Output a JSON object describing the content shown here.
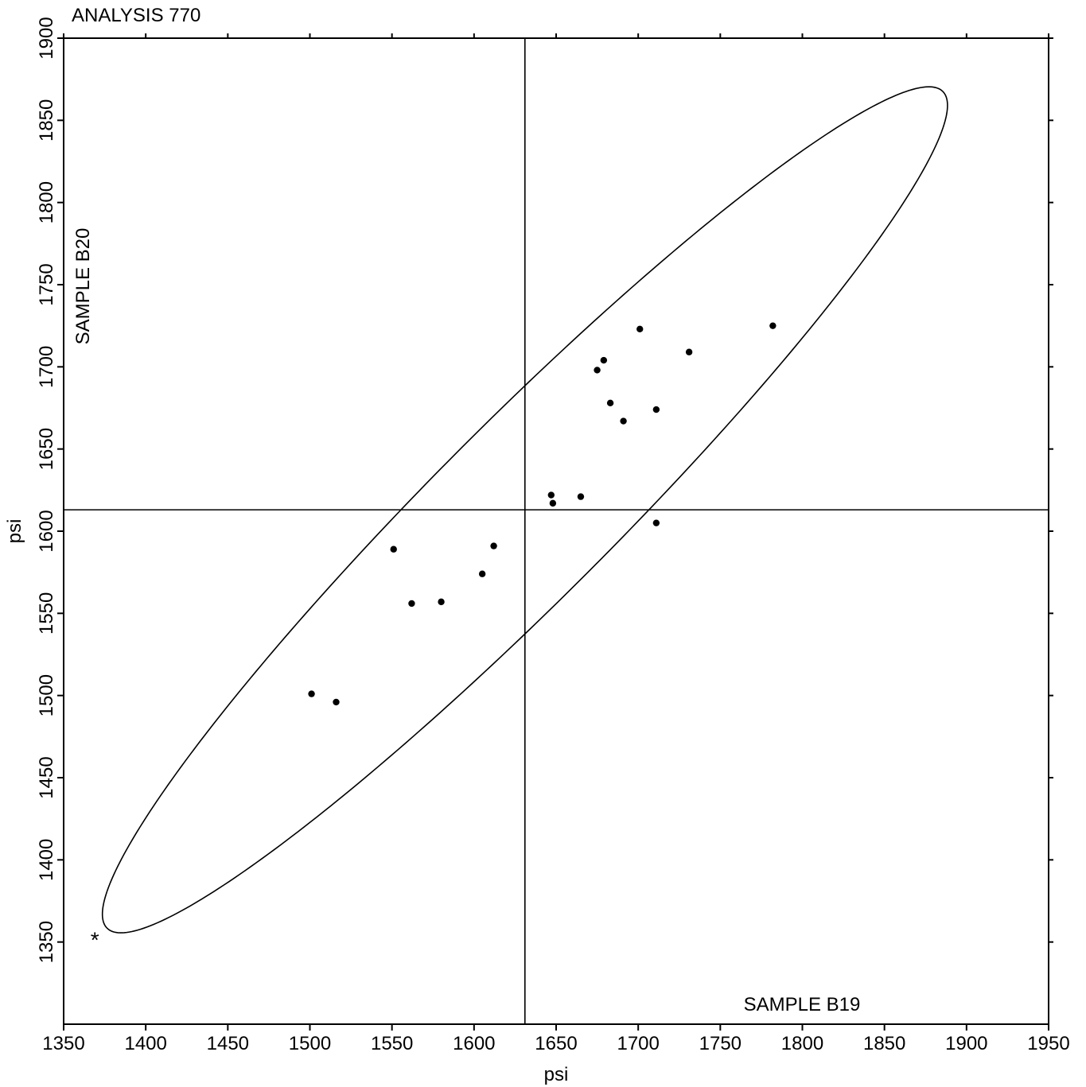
{
  "chart_data": {
    "type": "scatter",
    "title": "ANALYSIS 770",
    "xlabel": "psi",
    "ylabel": "psi",
    "x_series_label": "SAMPLE B19",
    "y_series_label": "SAMPLE B20",
    "xlim": [
      1350,
      1950
    ],
    "ylim": [
      1300,
      1900
    ],
    "x_ticks": [
      1350,
      1400,
      1450,
      1500,
      1550,
      1600,
      1650,
      1700,
      1750,
      1800,
      1850,
      1900,
      1950
    ],
    "y_ticks": [
      1350,
      1400,
      1450,
      1500,
      1550,
      1600,
      1650,
      1700,
      1750,
      1800,
      1850,
      1900
    ],
    "grid": false,
    "reference_lines": {
      "x": 1631,
      "y": 1613
    },
    "ellipse": {
      "center": [
        1631,
        1613
      ],
      "angle_deg": 45,
      "semi_axis_major": 360,
      "semi_axis_minor": 54
    },
    "points": [
      {
        "x": 1501,
        "y": 1501
      },
      {
        "x": 1516,
        "y": 1496
      },
      {
        "x": 1551,
        "y": 1589
      },
      {
        "x": 1562,
        "y": 1556
      },
      {
        "x": 1580,
        "y": 1557
      },
      {
        "x": 1605,
        "y": 1574
      },
      {
        "x": 1612,
        "y": 1591
      },
      {
        "x": 1647,
        "y": 1622
      },
      {
        "x": 1648,
        "y": 1617
      },
      {
        "x": 1665,
        "y": 1621
      },
      {
        "x": 1675,
        "y": 1698
      },
      {
        "x": 1679,
        "y": 1704
      },
      {
        "x": 1683,
        "y": 1678
      },
      {
        "x": 1691,
        "y": 1667
      },
      {
        "x": 1701,
        "y": 1723
      },
      {
        "x": 1711,
        "y": 1674
      },
      {
        "x": 1711,
        "y": 1605
      },
      {
        "x": 1731,
        "y": 1709
      },
      {
        "x": 1782,
        "y": 1725
      }
    ],
    "outlier": {
      "x": 1369,
      "y": 1352,
      "marker": "*"
    }
  }
}
